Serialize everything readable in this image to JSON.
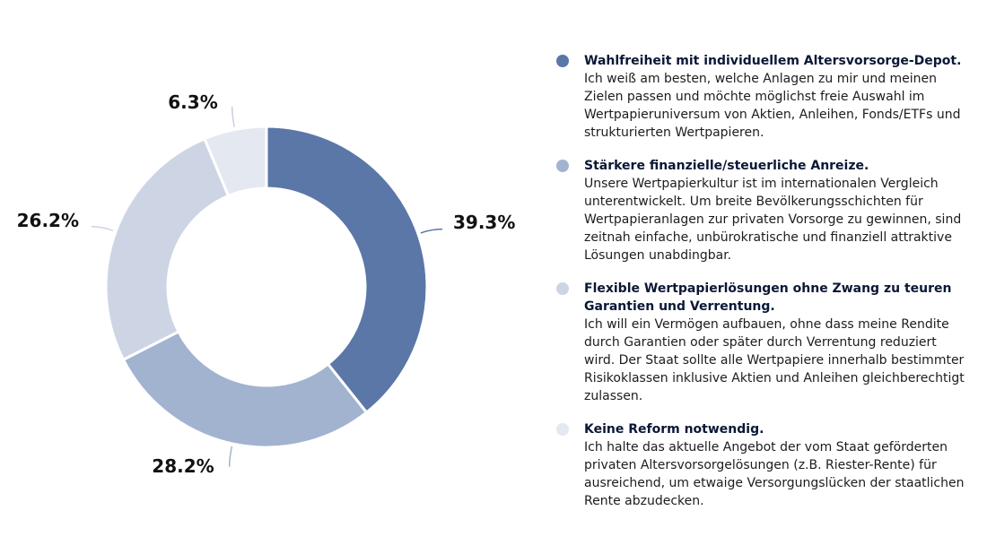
{
  "chart_data": {
    "type": "pie",
    "categories": [
      "Wahlfreiheit mit individuellem Altersvorsorge-Depot.",
      "Stärkere finanzielle/steuerliche Anreize.",
      "Flexible Wertpapierlösungen ohne Zwang zu teuren Garantien und Verrentung.",
      "Keine Reform notwendig."
    ],
    "values": [
      39.3,
      28.2,
      26.2,
      6.3
    ],
    "value_labels": [
      "39.3%",
      "28.2%",
      "26.2%",
      "6.3%"
    ],
    "colors": [
      "#5b77a8",
      "#a2b3d0",
      "#cdd5e5",
      "#e3e8f1"
    ],
    "donut": true,
    "legend_position": "right"
  },
  "legend": {
    "items": [
      {
        "title": "Wahlfreiheit mit individuellem Altersvorsorge-Depot.",
        "text": "Ich weiß am besten, welche Anlagen zu mir und meinen Zielen passen und möchte möglichst freie Auswahl im Wertpapieruniversum von Aktien, Anleihen, Fonds/ETFs und strukturierten Wertpapieren.",
        "color": "#5b77a8"
      },
      {
        "title": "Stärkere finanzielle/steuerliche Anreize.",
        "text": "Unsere Wertpapierkultur ist im internationalen Vergleich unterentwickelt. Um breite Bevölkerungsschichten für Wertpapieranlagen zur privaten Vorsorge zu gewinnen, sind zeitnah einfache, unbürokratische und finanziell attraktive Lösungen unabdingbar.",
        "color": "#a2b3d0"
      },
      {
        "title": "Flexible Wertpapierlösungen ohne Zwang zu teuren Garantien und Verrentung.",
        "text": "Ich will ein Vermögen aufbauen, ohne dass meine Rendite durch Garantien oder später durch Verrentung reduziert wird. Der Staat sollte alle Wertpapiere innerhalb bestimmter Risikoklassen inklusive Aktien und Anleihen gleichberechtigt zulassen.",
        "color": "#cdd5e5"
      },
      {
        "title": "Keine Reform notwendig.",
        "text": "Ich halte das aktuelle Angebot der vom Staat geförderten privaten Altersvorsorgelösungen (z.B. Riester-Rente) für ausreichend, um etwaige Versorgungslücken der staatlichen Rente abzudecken.",
        "color": "#e3e8f1"
      }
    ]
  }
}
